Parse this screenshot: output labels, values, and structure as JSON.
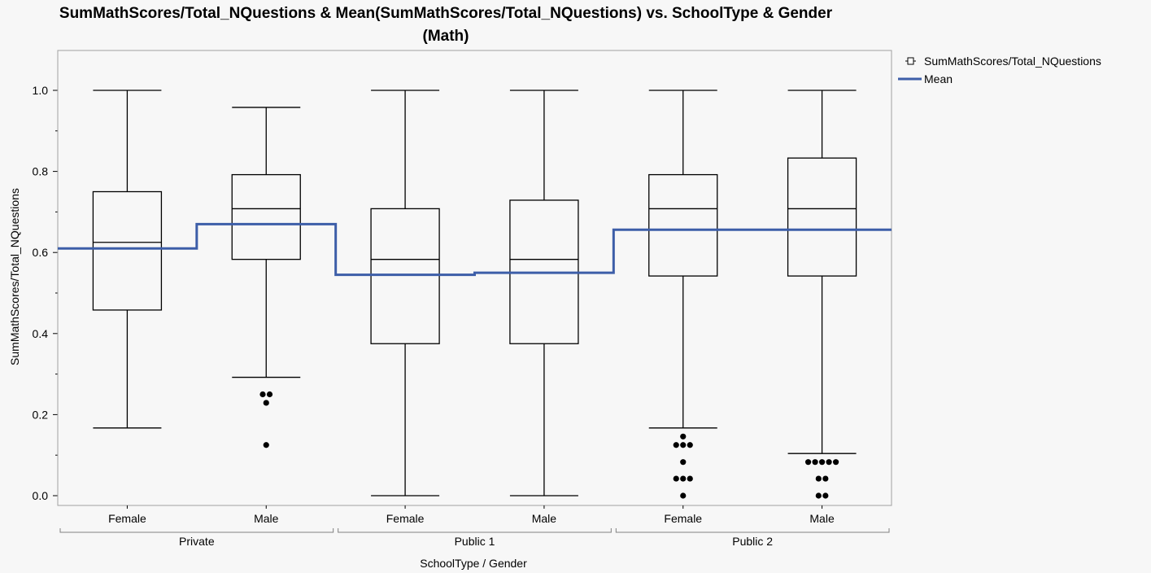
{
  "chart_data": {
    "type": "box",
    "title_line1": "SumMathScores/Total_NQuestions & Mean(SumMathScores/Total_NQuestions) vs. SchoolType & Gender",
    "title_line2": "(Math)",
    "ylabel": "SumMathScores/Total_NQuestions",
    "xlabel": "SchoolType / Gender",
    "ylim": [
      -0.025,
      1.1
    ],
    "yticks": [
      "0.0",
      "0.2",
      "0.4",
      "0.6",
      "0.8",
      "1.0"
    ],
    "groups": [
      "Private",
      "Public 1",
      "Public 2"
    ],
    "categories": [
      {
        "group": "Private",
        "label": "Female",
        "min": 0.167,
        "q1": 0.458,
        "median": 0.625,
        "q3": 0.75,
        "max": 1.0,
        "mean": 0.61,
        "outliers": []
      },
      {
        "group": "Private",
        "label": "Male",
        "min": 0.292,
        "q1": 0.583,
        "median": 0.708,
        "q3": 0.792,
        "max": 0.958,
        "mean": 0.67,
        "outliers": [
          0.25,
          0.25,
          0.229,
          0.125
        ]
      },
      {
        "group": "Public 1",
        "label": "Female",
        "min": 0.0,
        "q1": 0.375,
        "median": 0.583,
        "q3": 0.708,
        "max": 1.0,
        "mean": 0.545,
        "outliers": []
      },
      {
        "group": "Public 1",
        "label": "Male",
        "min": 0.0,
        "q1": 0.375,
        "median": 0.583,
        "q3": 0.729,
        "max": 1.0,
        "mean": 0.55,
        "outliers": []
      },
      {
        "group": "Public 2",
        "label": "Female",
        "min": 0.167,
        "q1": 0.542,
        "median": 0.708,
        "q3": 0.792,
        "max": 1.0,
        "mean": 0.656,
        "outliers": [
          0.146,
          0.125,
          0.125,
          0.125,
          0.083,
          0.042,
          0.042,
          0.042,
          0.0
        ]
      },
      {
        "group": "Public 2",
        "label": "Male",
        "min": 0.104,
        "q1": 0.542,
        "median": 0.708,
        "q3": 0.833,
        "max": 1.0,
        "mean": 0.656,
        "outliers": [
          0.083,
          0.083,
          0.083,
          0.083,
          0.083,
          0.042,
          0.042,
          0.0,
          0.0
        ]
      }
    ],
    "legend": [
      {
        "label": "SumMathScores/Total_NQuestions",
        "marker": "box-icon"
      },
      {
        "label": "Mean",
        "marker": "line-icon"
      }
    ],
    "legend_position": "right",
    "colors": {
      "mean_line": "#3d5ea8",
      "box": "#000000",
      "frame": "#a0a0a0",
      "background": "#f7f7f7"
    },
    "grid": false
  }
}
